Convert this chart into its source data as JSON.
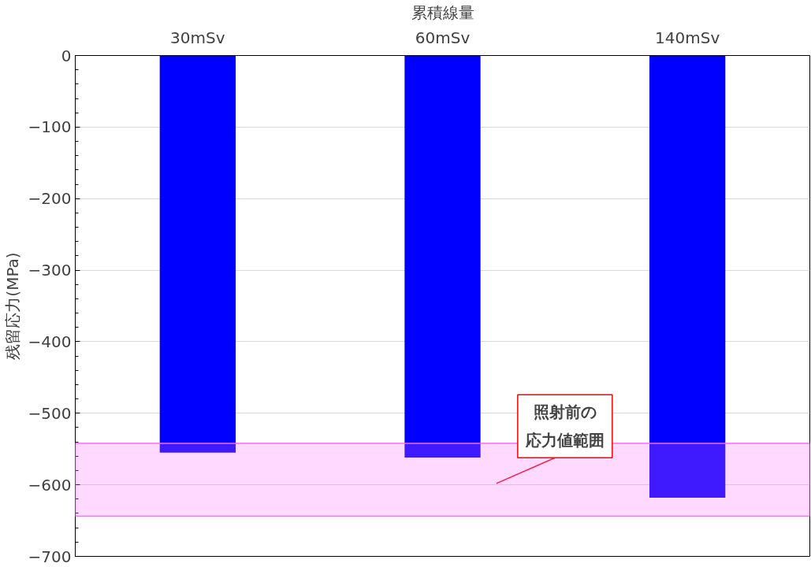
{
  "chart_data": {
    "type": "bar",
    "xlabel": "累積線量",
    "ylabel": "残留応力(MPa)",
    "categories": [
      "30mSv",
      "60mSv",
      "140mSv"
    ],
    "values": [
      -555,
      -562,
      -618
    ],
    "color": "#0000ff",
    "ylim": [
      -700,
      0
    ],
    "yticks": [
      0,
      -100,
      -200,
      -300,
      -400,
      -500,
      -600,
      -700
    ],
    "grid": "y",
    "bands": [
      {
        "axis": "y",
        "from": -542,
        "to": -644,
        "label": "照射前の応力値範囲",
        "color": "#ff66ff"
      }
    ]
  }
}
